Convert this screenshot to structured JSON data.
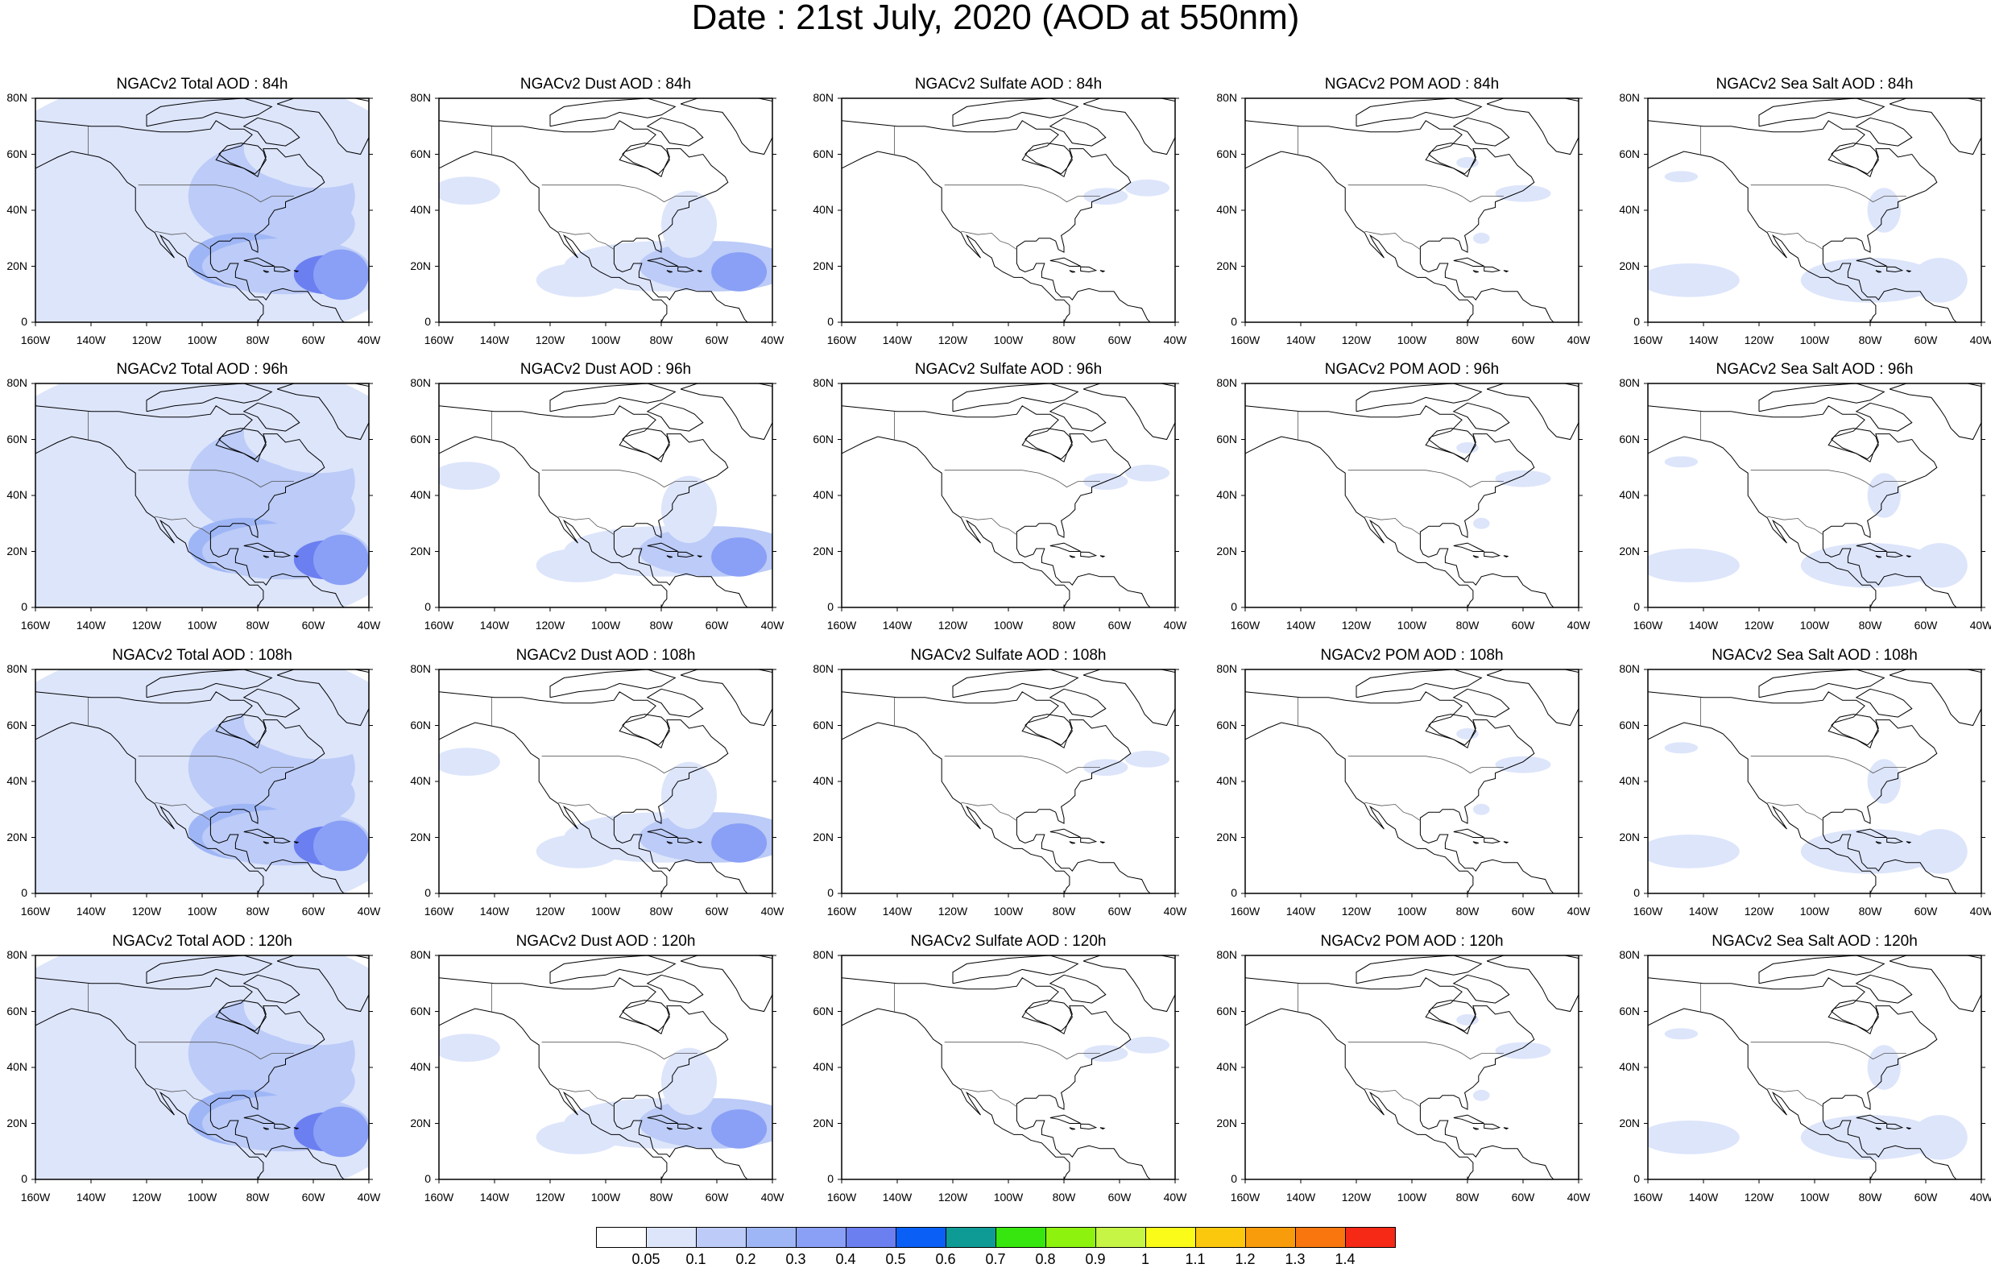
{
  "title": "Date : 21st July, 2020 (AOD at 550nm)",
  "rows": [
    {
      "hour": "84h",
      "panels": [
        {
          "title": "NGACv2 Total AOD : 84h",
          "species": "total"
        },
        {
          "title": "NGACv2 Dust AOD : 84h",
          "species": "dust"
        },
        {
          "title": "NGACv2 Sulfate AOD : 84h",
          "species": "sulfate"
        },
        {
          "title": "NGACv2 POM AOD : 84h",
          "species": "pom"
        },
        {
          "title": "NGACv2 Sea Salt AOD : 84h",
          "species": "seasalt"
        }
      ]
    },
    {
      "hour": "96h",
      "panels": [
        {
          "title": "NGACv2 Total AOD : 96h",
          "species": "total"
        },
        {
          "title": "NGACv2 Dust AOD : 96h",
          "species": "dust"
        },
        {
          "title": "NGACv2 Sulfate AOD : 96h",
          "species": "sulfate"
        },
        {
          "title": "NGACv2 POM AOD : 96h",
          "species": "pom"
        },
        {
          "title": "NGACv2 Sea Salt AOD : 96h",
          "species": "seasalt"
        }
      ]
    },
    {
      "hour": "108h",
      "panels": [
        {
          "title": "NGACv2 Total AOD : 108h",
          "species": "total"
        },
        {
          "title": "NGACv2 Dust AOD : 108h",
          "species": "dust"
        },
        {
          "title": "NGACv2 Sulfate AOD : 108h",
          "species": "sulfate"
        },
        {
          "title": "NGACv2 POM AOD : 108h",
          "species": "pom"
        },
        {
          "title": "NGACv2 Sea Salt AOD : 108h",
          "species": "seasalt"
        }
      ]
    },
    {
      "hour": "120h",
      "panels": [
        {
          "title": "NGACv2 Total AOD : 120h",
          "species": "total"
        },
        {
          "title": "NGACv2 Dust AOD : 120h",
          "species": "dust"
        },
        {
          "title": "NGACv2 Sulfate AOD : 120h",
          "species": "sulfate"
        },
        {
          "title": "NGACv2 POM AOD : 120h",
          "species": "pom"
        },
        {
          "title": "NGACv2 Sea Salt  AOD : 120h",
          "species": "seasalt"
        }
      ]
    }
  ],
  "lat_ticks": [
    "80N",
    "60N",
    "40N",
    "20N",
    "0"
  ],
  "lon_ticks": [
    "160W",
    "140W",
    "120W",
    "100W",
    "80W",
    "60W",
    "40W"
  ],
  "colorbar": {
    "colors": [
      "#ffffff",
      "#dde5fb",
      "#bccbf7",
      "#9fb6f6",
      "#8aa0f6",
      "#6b7ff0",
      "#0a5ff6",
      "#0e9b95",
      "#37e60e",
      "#8ef20f",
      "#c6f545",
      "#fbfb1a",
      "#fbc80e",
      "#f99c0b",
      "#f8760d",
      "#f52916"
    ],
    "labels": [
      "0.05",
      "0.1",
      "0.2",
      "0.3",
      "0.4",
      "0.5",
      "0.6",
      "0.7",
      "0.8",
      "0.9",
      "1",
      "1.1",
      "1.2",
      "1.3",
      "1.4"
    ]
  }
}
